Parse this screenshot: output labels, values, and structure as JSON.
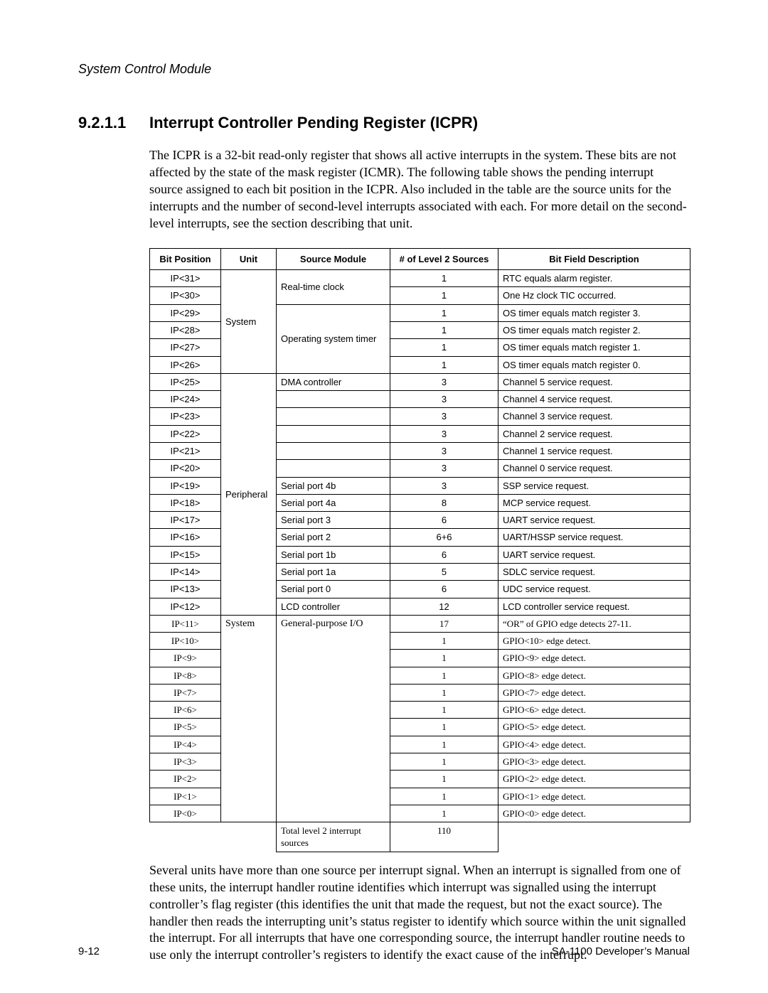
{
  "running_head": "System Control Module",
  "section_number": "9.2.1.1",
  "section_title": "Interrupt Controller Pending Register (ICPR)",
  "intro_text": "The ICPR is a 32-bit read-only register that shows all active interrupts in the system. These bits are not affected by the state of the mask register (ICMR).  The following table shows the pending interrupt source assigned to each bit position in the ICPR. Also included in the table are the source units for the interrupts and the number of second-level interrupts associated with each. For more detail on the second-level interrupts, see the section describing that unit.",
  "outro_text": "Several units have more than one source per interrupt signal. When an interrupt is signalled from one of these units, the interrupt handler routine identifies which interrupt was signalled using the interrupt controller’s flag register (this identifies the unit that made the request, but not the exact source). The handler then reads the interrupting unit’s status register to identify which source within the unit signalled the interrupt. For all interrupts that have one corresponding source, the interrupt handler routine needs to use only the interrupt controller’s registers to identify the exact cause of the interrupt.",
  "headers": {
    "bit": "Bit Position",
    "unit": "Unit",
    "src": "Source Module",
    "lvl": "# of Level 2 Sources",
    "desc": "Bit Field Description"
  },
  "groups": [
    {
      "unit": "System",
      "serif": false,
      "src_spans": [
        {
          "src": "Real-time clock",
          "count": 2
        },
        {
          "src": "Operating system timer",
          "count": 4
        }
      ],
      "rows": [
        {
          "bit": "IP<31>",
          "lvl": "1",
          "desc": "RTC equals alarm register."
        },
        {
          "bit": "IP<30>",
          "lvl": "1",
          "desc": "One Hz clock TIC occurred."
        },
        {
          "bit": "IP<29>",
          "lvl": "1",
          "desc": "OS timer equals match register 3."
        },
        {
          "bit": "IP<28>",
          "lvl": "1",
          "desc": "OS timer equals match register 2."
        },
        {
          "bit": "IP<27>",
          "lvl": "1",
          "desc": "OS timer equals match register 1."
        },
        {
          "bit": "IP<26>",
          "lvl": "1",
          "desc": "OS timer equals match register 0."
        }
      ]
    },
    {
      "unit": "Peripheral",
      "serif": false,
      "src_spans": [
        {
          "src": "DMA controller",
          "count": 1
        },
        {
          "src": "",
          "count": 1
        },
        {
          "src": "",
          "count": 1
        },
        {
          "src": "",
          "count": 1
        },
        {
          "src": "",
          "count": 1
        },
        {
          "src": "",
          "count": 1
        },
        {
          "src": "Serial port 4b",
          "count": 1
        },
        {
          "src": "Serial port 4a",
          "count": 1
        },
        {
          "src": "Serial port 3",
          "count": 1
        },
        {
          "src": "Serial port 2",
          "count": 1
        },
        {
          "src": "Serial port 1b",
          "count": 1
        },
        {
          "src": "Serial port 1a",
          "count": 1
        },
        {
          "src": "Serial port 0",
          "count": 1
        },
        {
          "src": "LCD controller",
          "count": 1
        }
      ],
      "rows": [
        {
          "bit": "IP<25>",
          "lvl": "3",
          "desc": "Channel 5 service request."
        },
        {
          "bit": "IP<24>",
          "lvl": "3",
          "desc": "Channel 4 service request."
        },
        {
          "bit": "IP<23>",
          "lvl": "3",
          "desc": "Channel 3 service request."
        },
        {
          "bit": "IP<22>",
          "lvl": "3",
          "desc": "Channel 2 service request."
        },
        {
          "bit": "IP<21>",
          "lvl": "3",
          "desc": "Channel 1 service request."
        },
        {
          "bit": "IP<20>",
          "lvl": "3",
          "desc": "Channel 0 service request."
        },
        {
          "bit": "IP<19>",
          "lvl": "3",
          "desc": "SSP service request."
        },
        {
          "bit": "IP<18>",
          "lvl": "8",
          "desc": "MCP service request."
        },
        {
          "bit": "IP<17>",
          "lvl": "6",
          "desc": "UART service request."
        },
        {
          "bit": "IP<16>",
          "lvl": "6+6",
          "desc": "UART/HSSP service request."
        },
        {
          "bit": "IP<15>",
          "lvl": "6",
          "desc": "UART service request."
        },
        {
          "bit": "IP<14>",
          "lvl": "5",
          "desc": "SDLC service request."
        },
        {
          "bit": "IP<13>",
          "lvl": "6",
          "desc": "UDC service request."
        },
        {
          "bit": "IP<12>",
          "lvl": "12",
          "desc": "LCD controller service request."
        }
      ]
    },
    {
      "unit": "System",
      "serif": true,
      "src_spans": [
        {
          "src": "General-purpose I/O",
          "count": 12
        }
      ],
      "rows": [
        {
          "bit": "IP<11>",
          "lvl": "17",
          "desc": "“OR” of GPIO edge detects 27-11."
        },
        {
          "bit": "IP<10>",
          "lvl": "1",
          "desc": "GPIO<10> edge detect."
        },
        {
          "bit": "IP<9>",
          "lvl": "1",
          "desc": "GPIO<9> edge detect."
        },
        {
          "bit": "IP<8>",
          "lvl": "1",
          "desc": "GPIO<8> edge detect."
        },
        {
          "bit": "IP<7>",
          "lvl": "1",
          "desc": "GPIO<7> edge detect."
        },
        {
          "bit": "IP<6>",
          "lvl": "1",
          "desc": "GPIO<6> edge detect."
        },
        {
          "bit": "IP<5>",
          "lvl": "1",
          "desc": "GPIO<5> edge detect."
        },
        {
          "bit": "IP<4>",
          "lvl": "1",
          "desc": "GPIO<4> edge detect."
        },
        {
          "bit": "IP<3>",
          "lvl": "1",
          "desc": "GPIO<3> edge detect."
        },
        {
          "bit": "IP<2>",
          "lvl": "1",
          "desc": "GPIO<2> edge detect."
        },
        {
          "bit": "IP<1>",
          "lvl": "1",
          "desc": "GPIO<1> edge detect."
        },
        {
          "bit": "IP<0>",
          "lvl": "1",
          "desc": "GPIO<0> edge detect."
        }
      ]
    }
  ],
  "total_row": {
    "label": "Total level 2 interrupt sources",
    "value": "110"
  },
  "footer_left": "9-12",
  "footer_right": "SA-1100  Developer’s Manual"
}
